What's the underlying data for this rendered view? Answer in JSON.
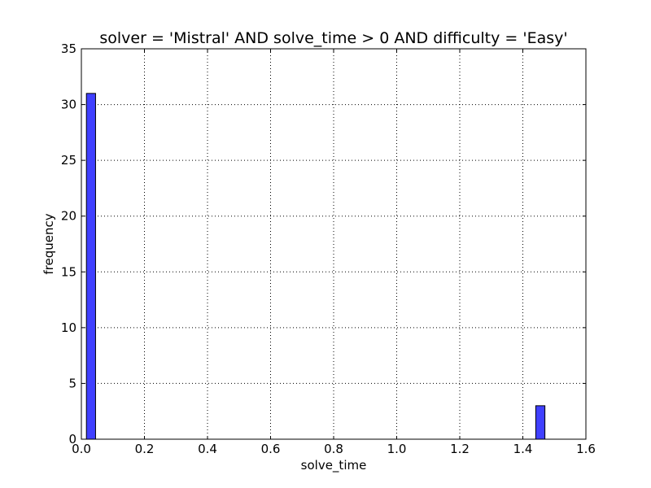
{
  "chart_data": {
    "type": "bar",
    "title": "solver = 'Mistral' AND solve_time > 0 AND difficulty = 'Easy'",
    "xlabel": "solve_time",
    "ylabel": "frequency",
    "xlim": [
      0,
      1.6
    ],
    "ylim": [
      0,
      35
    ],
    "x_ticks": [
      "0.0",
      "0.2",
      "0.4",
      "0.6",
      "0.8",
      "1.0",
      "1.2",
      "1.4",
      "1.6"
    ],
    "y_ticks": [
      "0",
      "5",
      "10",
      "15",
      "20",
      "25",
      "30",
      "35"
    ],
    "grid": true,
    "bins": [
      {
        "x_start": 0.016,
        "x_end": 0.045,
        "value": 31
      },
      {
        "x_start": 1.441,
        "x_end": 1.47,
        "value": 3
      }
    ],
    "bar_color": "#4040ff"
  }
}
